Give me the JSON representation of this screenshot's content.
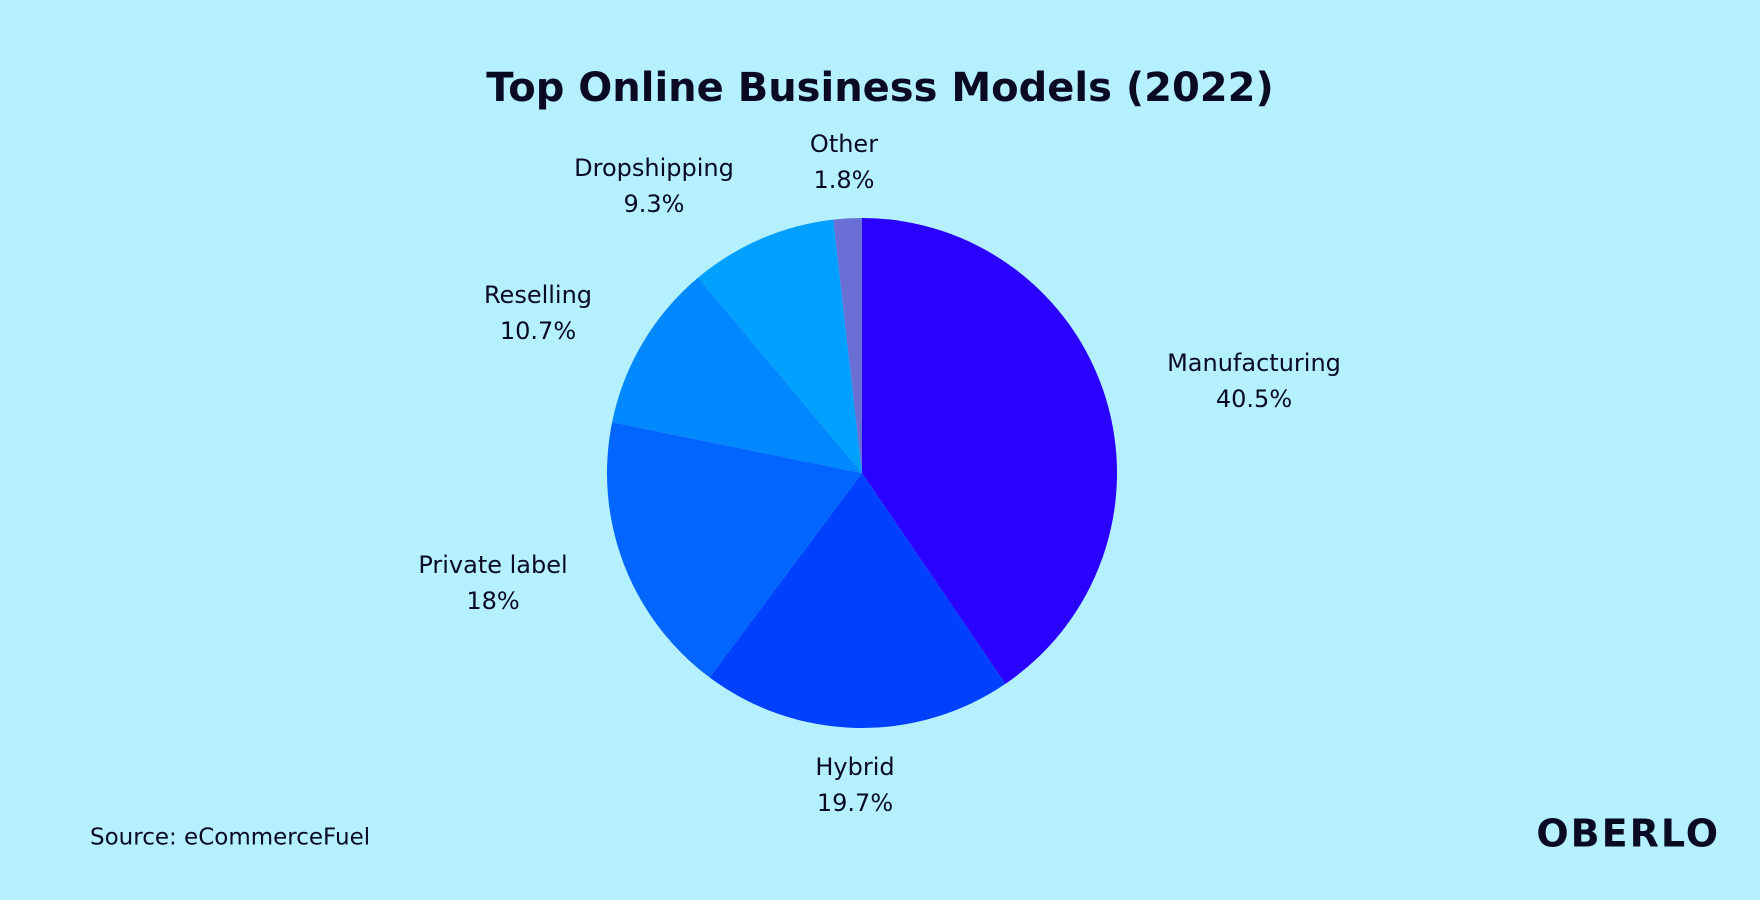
{
  "chart_data": {
    "type": "pie",
    "title": "Top Online Business Models (2022)",
    "categories": [
      "Manufacturing",
      "Hybrid",
      "Private label",
      "Reselling",
      "Dropshipping",
      "Other"
    ],
    "values": [
      40.5,
      19.7,
      18,
      10.7,
      9.3,
      1.8
    ],
    "value_labels": [
      "40.5%",
      "19.7%",
      "18%",
      "10.7%",
      "9.3%",
      "1.8%"
    ],
    "colors": [
      "#2a00ff",
      "#0040ff",
      "#0066ff",
      "#0088ff",
      "#00a0ff",
      "#6a6fd6"
    ],
    "source": "Source: eCommerceFuel",
    "logo": "OBERLO"
  }
}
